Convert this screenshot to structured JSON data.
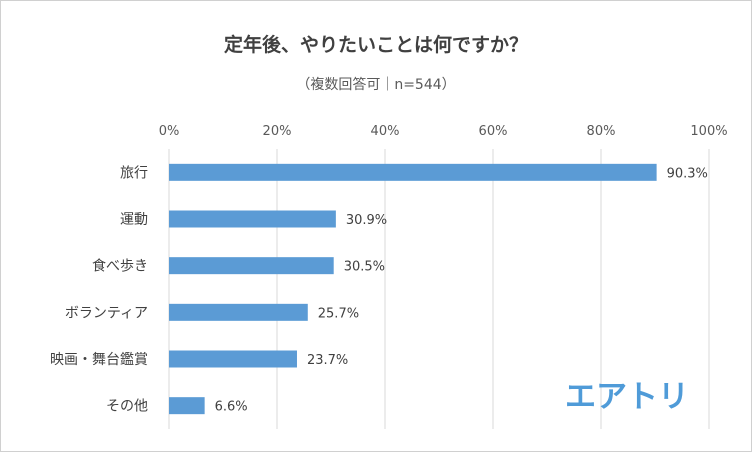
{
  "chart_data": {
    "type": "bar",
    "orientation": "horizontal",
    "title": "定年後、やりたいことは何ですか？",
    "subtitle": "（複数回答可｜n=544）",
    "categories": [
      "旅行",
      "運動",
      "食べ歩き",
      "ボランティア",
      "映画・舞台鑑賞",
      "その他"
    ],
    "values": [
      90.3,
      30.9,
      30.5,
      25.7,
      23.7,
      6.6
    ],
    "data_labels": [
      "90.3%",
      "30.9%",
      "30.5%",
      "25.7%",
      "23.7%",
      "6.6%"
    ],
    "xlim": [
      0,
      100
    ],
    "xticks": [
      0,
      20,
      40,
      60,
      80,
      100
    ],
    "xtick_labels": [
      "0%",
      "20%",
      "40%",
      "60%",
      "80%",
      "100%"
    ],
    "x_axis_position": "top",
    "grid": true,
    "legend": "none",
    "bar_color": "#5b9bd5"
  },
  "brand": {
    "logo_text": "エアトリ",
    "logo_color": "#4f9bd8"
  },
  "colors": {
    "grid": "#d9d9d9",
    "text": "#404040"
  }
}
